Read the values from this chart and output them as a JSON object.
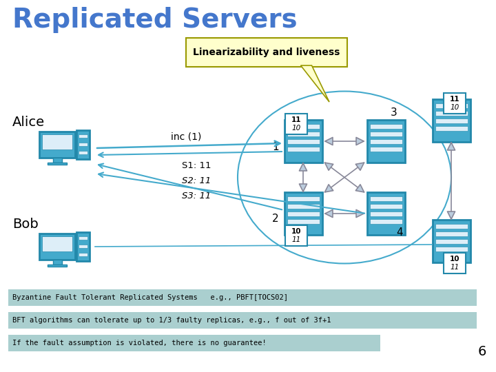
{
  "title": "Replicated Servers",
  "title_color": "#4477CC",
  "bg_color": "#FFFFFF",
  "callout_text": "Linearizability and liveness",
  "callout_bg": "#FFFFCC",
  "callout_border": "#CCCC00",
  "alice_label": "Alice",
  "bob_label": "Bob",
  "inc_label": "inc (1)",
  "s1_label": "S1: 11",
  "s2_label": "S2: 11",
  "s3_label": "S3: 11",
  "server_color": "#44AACC",
  "server_border": "#2288AA",
  "server_dark": "#2288AA",
  "circle_color": "#44AACC",
  "arrow_fill": "#BBCCDD",
  "arrow_edge": "#888899",
  "comm_arrow_color": "#44AACC",
  "num_1": "1",
  "num_2": "2",
  "num_3": "3",
  "num_4": "4",
  "footer1": "Byzantine Fault Tolerant Replicated Systems   e.g., PBFT[TOCS02]",
  "footer2": "BFT algorithms can tolerate up to 1/3 faulty replicas, e.g., f out of 3f+1",
  "footer3": "If the fault assumption is violated, there is no guarantee!",
  "footer_bg": "#AACFCF",
  "page_num": "6"
}
